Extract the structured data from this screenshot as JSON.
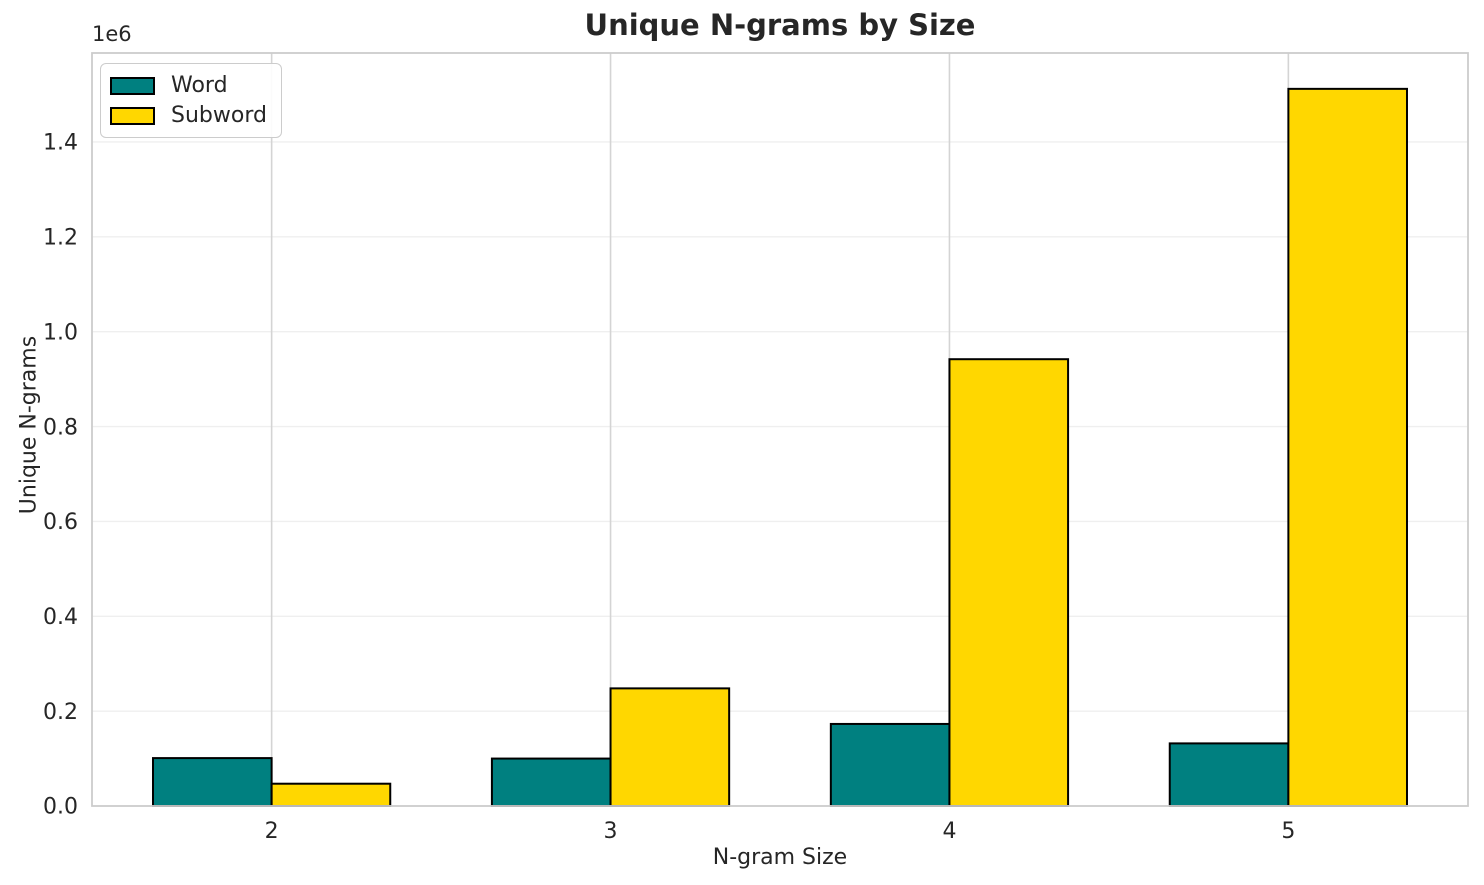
{
  "chart_data": {
    "type": "bar",
    "title": "Unique N-grams by Size",
    "xlabel": "N-gram Size",
    "ylabel": "Unique N-grams",
    "y_offset_label": "1e6",
    "categories": [
      2,
      3,
      4,
      5
    ],
    "series": [
      {
        "name": "Word",
        "color": "#008080",
        "values": [
          101000,
          100000,
          173000,
          132000
        ]
      },
      {
        "name": "Subword",
        "color": "#FFD700",
        "values": [
          47000,
          248000,
          942000,
          1512000
        ]
      }
    ],
    "bar_width": 0.35,
    "bar_edge_color": "#000000",
    "xlim": [
      1.47,
      5.53
    ],
    "ylim": [
      0,
      1587600
    ],
    "y_ticks": [
      0,
      200000,
      400000,
      600000,
      800000,
      1000000,
      1200000,
      1400000
    ],
    "grid": true,
    "legend_position": "upper left"
  },
  "style_colors": {
    "background": "#ffffff",
    "text": "#262626",
    "spine": "#cccccc",
    "grid_horizontal": "#efefef",
    "grid_vertical": "#d4d4d4"
  }
}
